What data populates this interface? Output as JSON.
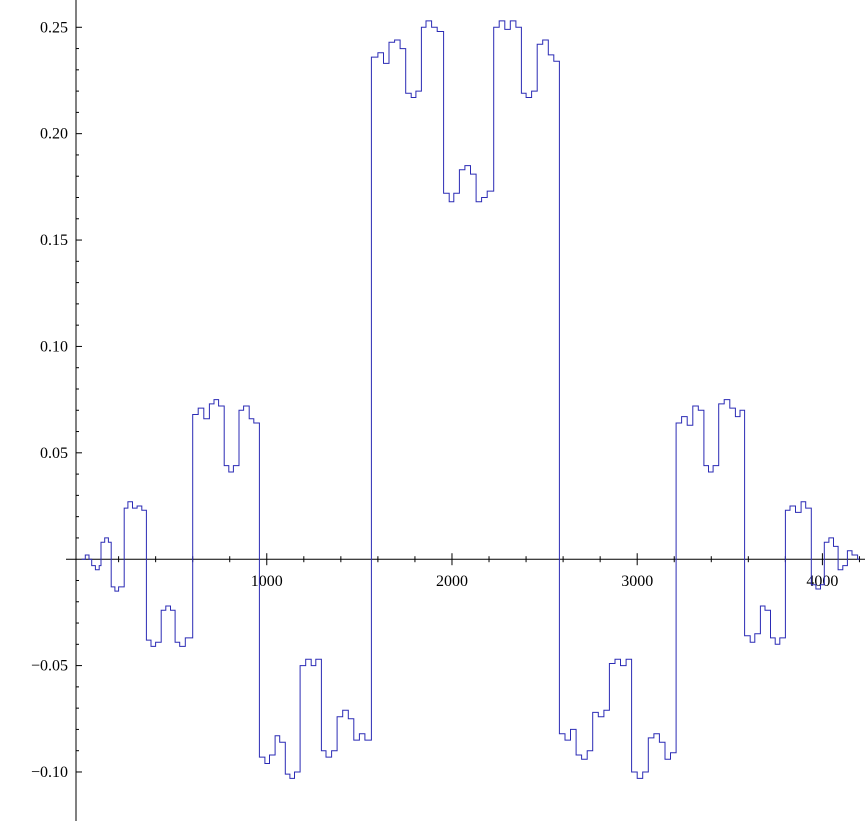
{
  "chart_data": {
    "type": "line",
    "title": "",
    "xlabel": "",
    "ylabel": "",
    "xlim": [
      -30,
      4230
    ],
    "ylim": [
      -0.108,
      0.26
    ],
    "grid": false,
    "legend": "none",
    "x_ticks": [
      {
        "value": 1000,
        "label": "1000"
      },
      {
        "value": 2000,
        "label": "2000"
      },
      {
        "value": 3000,
        "label": "3000"
      },
      {
        "value": 4000,
        "label": "4000"
      }
    ],
    "y_ticks": [
      {
        "value": 0.25,
        "label": "0.25"
      },
      {
        "value": 0.2,
        "label": "0.20"
      },
      {
        "value": 0.15,
        "label": "0.15"
      },
      {
        "value": 0.1,
        "label": "0.10"
      },
      {
        "value": 0.05,
        "label": "0.05"
      },
      {
        "value": -0.05,
        "label": "−0.05"
      },
      {
        "value": -0.1,
        "label": "−0.10"
      }
    ],
    "series": [
      {
        "color": "#2b2bb5",
        "step": true,
        "points": [
          [
            0,
            0.0
          ],
          [
            20,
            0.002
          ],
          [
            40,
            0.0
          ],
          [
            55,
            -0.003
          ],
          [
            75,
            -0.005
          ],
          [
            95,
            -0.003
          ],
          [
            105,
            0.008
          ],
          [
            125,
            0.01
          ],
          [
            145,
            0.008
          ],
          [
            160,
            -0.013
          ],
          [
            180,
            -0.015
          ],
          [
            200,
            -0.013
          ],
          [
            230,
            0.024
          ],
          [
            250,
            0.027
          ],
          [
            275,
            0.024
          ],
          [
            300,
            0.025
          ],
          [
            325,
            0.023
          ],
          [
            350,
            -0.038
          ],
          [
            375,
            -0.041
          ],
          [
            400,
            -0.039
          ],
          [
            430,
            -0.024
          ],
          [
            455,
            -0.022
          ],
          [
            480,
            -0.024
          ],
          [
            505,
            -0.039
          ],
          [
            530,
            -0.041
          ],
          [
            560,
            -0.037
          ],
          [
            600,
            0.068
          ],
          [
            630,
            0.071
          ],
          [
            660,
            0.066
          ],
          [
            690,
            0.073
          ],
          [
            715,
            0.075
          ],
          [
            740,
            0.072
          ],
          [
            770,
            0.044
          ],
          [
            795,
            0.041
          ],
          [
            820,
            0.044
          ],
          [
            850,
            0.07
          ],
          [
            875,
            0.072
          ],
          [
            905,
            0.066
          ],
          [
            930,
            0.064
          ],
          [
            960,
            -0.093
          ],
          [
            990,
            -0.096
          ],
          [
            1015,
            -0.092
          ],
          [
            1045,
            -0.083
          ],
          [
            1070,
            -0.086
          ],
          [
            1100,
            -0.101
          ],
          [
            1125,
            -0.103
          ],
          [
            1150,
            -0.1
          ],
          [
            1180,
            -0.05
          ],
          [
            1210,
            -0.047
          ],
          [
            1240,
            -0.05
          ],
          [
            1265,
            -0.047
          ],
          [
            1295,
            -0.09
          ],
          [
            1320,
            -0.093
          ],
          [
            1350,
            -0.09
          ],
          [
            1380,
            -0.074
          ],
          [
            1410,
            -0.071
          ],
          [
            1440,
            -0.075
          ],
          [
            1470,
            -0.085
          ],
          [
            1500,
            -0.082
          ],
          [
            1530,
            -0.085
          ],
          [
            1565,
            0.236
          ],
          [
            1600,
            0.238
          ],
          [
            1630,
            0.233
          ],
          [
            1660,
            0.243
          ],
          [
            1690,
            0.244
          ],
          [
            1720,
            0.24
          ],
          [
            1750,
            0.219
          ],
          [
            1780,
            0.217
          ],
          [
            1805,
            0.22
          ],
          [
            1835,
            0.25
          ],
          [
            1860,
            0.253
          ],
          [
            1890,
            0.25
          ],
          [
            1920,
            0.248
          ],
          [
            1955,
            0.172
          ],
          [
            1985,
            0.168
          ],
          [
            2010,
            0.172
          ],
          [
            2040,
            0.183
          ],
          [
            2070,
            0.185
          ],
          [
            2100,
            0.181
          ],
          [
            2130,
            0.168
          ],
          [
            2160,
            0.17
          ],
          [
            2190,
            0.173
          ],
          [
            2225,
            0.25
          ],
          [
            2255,
            0.253
          ],
          [
            2285,
            0.249
          ],
          [
            2315,
            0.253
          ],
          [
            2345,
            0.25
          ],
          [
            2375,
            0.219
          ],
          [
            2400,
            0.217
          ],
          [
            2430,
            0.22
          ],
          [
            2460,
            0.242
          ],
          [
            2490,
            0.244
          ],
          [
            2520,
            0.237
          ],
          [
            2550,
            0.234
          ],
          [
            2580,
            -0.082
          ],
          [
            2610,
            -0.085
          ],
          [
            2640,
            -0.08
          ],
          [
            2670,
            -0.092
          ],
          [
            2700,
            -0.094
          ],
          [
            2730,
            -0.09
          ],
          [
            2760,
            -0.072
          ],
          [
            2790,
            -0.074
          ],
          [
            2820,
            -0.071
          ],
          [
            2850,
            -0.049
          ],
          [
            2880,
            -0.047
          ],
          [
            2910,
            -0.05
          ],
          [
            2940,
            -0.047
          ],
          [
            2970,
            -0.1
          ],
          [
            3000,
            -0.103
          ],
          [
            3030,
            -0.1
          ],
          [
            3060,
            -0.084
          ],
          [
            3090,
            -0.082
          ],
          [
            3120,
            -0.086
          ],
          [
            3150,
            -0.094
          ],
          [
            3180,
            -0.091
          ],
          [
            3210,
            0.064
          ],
          [
            3240,
            0.067
          ],
          [
            3270,
            0.063
          ],
          [
            3300,
            0.072
          ],
          [
            3330,
            0.07
          ],
          [
            3360,
            0.044
          ],
          [
            3385,
            0.041
          ],
          [
            3410,
            0.044
          ],
          [
            3440,
            0.073
          ],
          [
            3470,
            0.075
          ],
          [
            3500,
            0.071
          ],
          [
            3530,
            0.067
          ],
          [
            3555,
            0.07
          ],
          [
            3580,
            -0.036
          ],
          [
            3610,
            -0.039
          ],
          [
            3635,
            -0.035
          ],
          [
            3665,
            -0.022
          ],
          [
            3690,
            -0.024
          ],
          [
            3720,
            -0.037
          ],
          [
            3745,
            -0.04
          ],
          [
            3770,
            -0.037
          ],
          [
            3800,
            0.023
          ],
          [
            3825,
            0.025
          ],
          [
            3855,
            0.022
          ],
          [
            3885,
            0.027
          ],
          [
            3910,
            0.024
          ],
          [
            3940,
            -0.012
          ],
          [
            3965,
            -0.014
          ],
          [
            3990,
            -0.012
          ],
          [
            4010,
            0.008
          ],
          [
            4035,
            0.01
          ],
          [
            4060,
            0.006
          ],
          [
            4085,
            -0.005
          ],
          [
            4110,
            -0.003
          ],
          [
            4135,
            0.004
          ],
          [
            4160,
            0.002
          ],
          [
            4190,
            0.0
          ]
        ]
      }
    ]
  }
}
